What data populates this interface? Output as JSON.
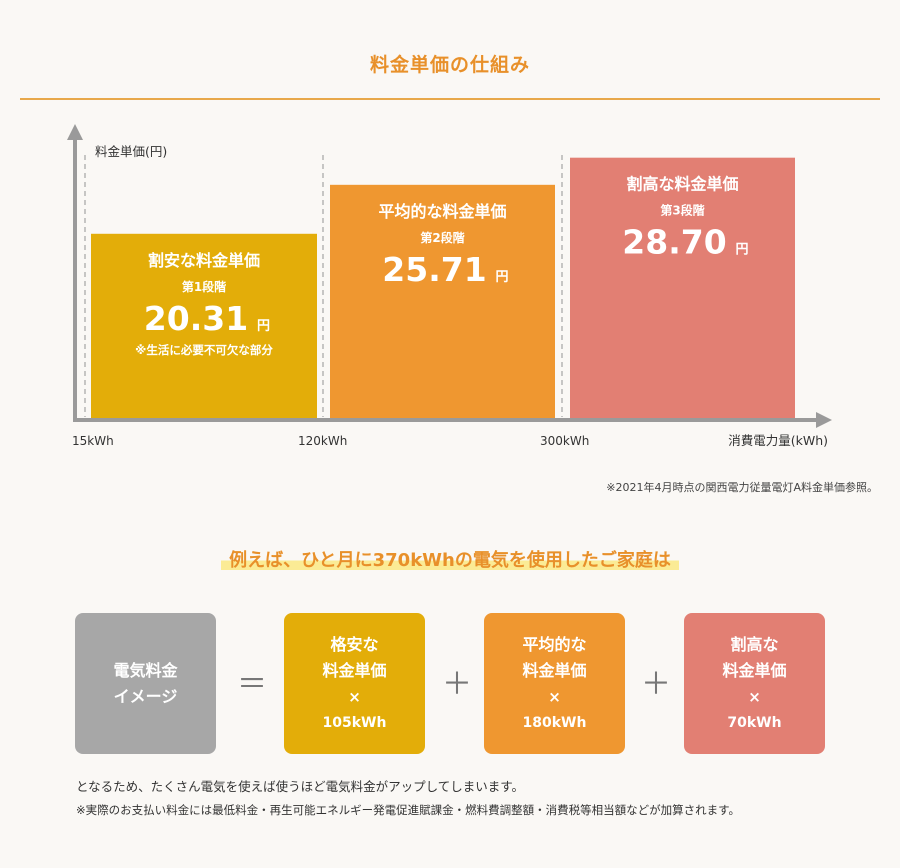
{
  "page_title": "料金単価の仕組み",
  "chart_data": {
    "type": "bar",
    "ylabel": "料金単価(円)",
    "xlabel": "消費電力量(kWh)",
    "x_ticks": [
      "15kWh",
      "120kWh",
      "300kWh"
    ],
    "tiers": [
      {
        "name": "割安な料金単価",
        "stage": "第1段階",
        "value": 20.31,
        "value_text": "20.31",
        "unit": "円",
        "note": "※生活に必要不可欠な部分",
        "x_from": 15,
        "x_to": 120,
        "color": "#e3ad09"
      },
      {
        "name": "平均的な料金単価",
        "stage": "第2段階",
        "value": 25.71,
        "value_text": "25.71",
        "unit": "円",
        "note": "",
        "x_from": 120,
        "x_to": 300,
        "color": "#ef9730"
      },
      {
        "name": "割高な料金単価",
        "stage": "第3段階",
        "value": 28.7,
        "value_text": "28.70",
        "unit": "円",
        "note": "",
        "x_from": 300,
        "x_to": null,
        "color": "#e27f73"
      }
    ],
    "source": "※2021年4月時点の関西電力従量電灯A料金単価参照。"
  },
  "example": {
    "headline": "例えば、ひと月に370kWhの電気を使用したご家庭は",
    "image_box": {
      "line1": "電気料金",
      "line2": "イメージ",
      "color": "#a7a7a7"
    },
    "equals": "＝",
    "plus": "＋",
    "times": "×",
    "terms": [
      {
        "line1": "格安な",
        "line2": "料金単価",
        "amount": "105kWh",
        "color": "#e3ad09"
      },
      {
        "line1": "平均的な",
        "line2": "料金単価",
        "amount": "180kWh",
        "color": "#ef9730"
      },
      {
        "line1": "割高な",
        "line2": "料金単価",
        "amount": "70kWh",
        "color": "#e27f73"
      }
    ]
  },
  "notes": {
    "line1": "となるため、たくさん電気を使えば使うほど電気料金がアップしてしまいます。",
    "line2": "※実際のお支払い料金には最低料金・再生可能エネルギー発電促進賦課金・燃料費調整額・消費税等相当額などが加算されます。"
  }
}
